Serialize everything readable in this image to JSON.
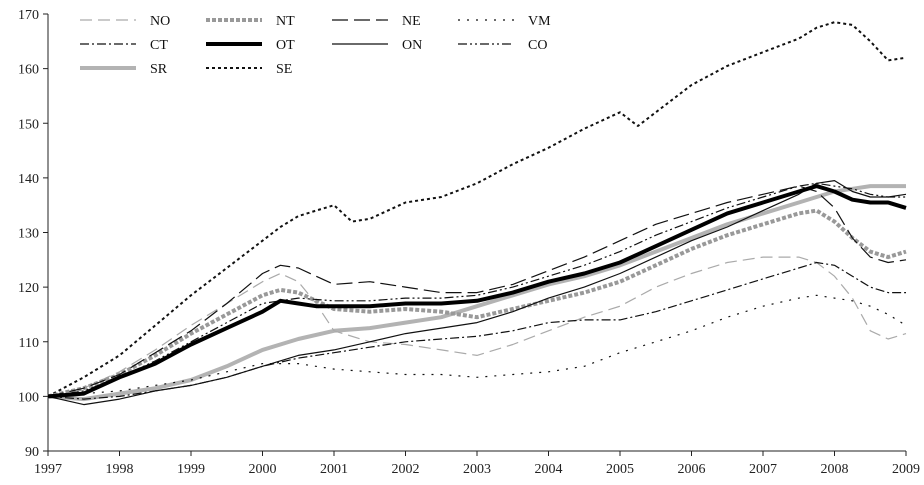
{
  "chart_data": {
    "type": "line",
    "title": "",
    "xlabel": "",
    "ylabel": "",
    "xlim": [
      1997,
      2009
    ],
    "ylim": [
      90,
      170
    ],
    "x_ticks": [
      "1997",
      "1998",
      "1999",
      "2000",
      "2001",
      "2002",
      "2003",
      "2004",
      "2005",
      "2006",
      "2007",
      "2008",
      "2009"
    ],
    "y_ticks": [
      "90",
      "100",
      "110",
      "120",
      "130",
      "140",
      "150",
      "160",
      "170"
    ],
    "grid": false,
    "legend_placement": "top-left",
    "series": [
      {
        "name": "NO",
        "color": "#aaaaaa",
        "dash": "dashed",
        "width": "thin",
        "x": [
          1997,
          1997.5,
          1998,
          1998.5,
          1999,
          1999.5,
          2000,
          2000.25,
          2000.5,
          2000.75,
          2001,
          2001.5,
          2002,
          2002.5,
          2003,
          2003.5,
          2004,
          2004.5,
          2005,
          2005.5,
          2006,
          2006.5,
          2007,
          2007.5,
          2007.75,
          2008,
          2008.25,
          2008.5,
          2008.75,
          2009
        ],
        "y": [
          100,
          101.5,
          104.5,
          108.5,
          113,
          117,
          121,
          122.5,
          121,
          117,
          112,
          110,
          109.5,
          108.5,
          107.5,
          109.5,
          112,
          114.5,
          116.5,
          120,
          122.5,
          124.5,
          125.5,
          125.5,
          124.5,
          122,
          118,
          112,
          110.5,
          111.5
        ]
      },
      {
        "name": "NT",
        "color": "#999999",
        "dash": "dotted",
        "width": "thick",
        "x": [
          1997,
          1997.5,
          1998,
          1998.5,
          1999,
          1999.5,
          2000,
          2000.25,
          2000.5,
          2000.75,
          2001,
          2001.5,
          2002,
          2002.5,
          2003,
          2003.5,
          2004,
          2004.5,
          2005,
          2005.5,
          2006,
          2006.5,
          2007,
          2007.5,
          2007.75,
          2008,
          2008.25,
          2008.5,
          2008.75,
          2009
        ],
        "y": [
          100,
          101.5,
          104,
          107.5,
          111.5,
          115,
          118.5,
          119.5,
          119,
          117.5,
          116,
          115.5,
          116,
          115.5,
          114.5,
          116,
          117.5,
          119,
          121,
          124,
          127,
          129.5,
          131.5,
          133.5,
          134,
          132,
          129,
          126.5,
          125.5,
          126.5
        ]
      },
      {
        "name": "NE",
        "color": "#111111",
        "dash": "longdash",
        "width": "thin",
        "x": [
          1997,
          1997.5,
          1998,
          1998.5,
          1999,
          1999.5,
          2000,
          2000.25,
          2000.5,
          2000.75,
          2001,
          2001.5,
          2002,
          2002.5,
          2003,
          2003.5,
          2004,
          2004.5,
          2005,
          2005.5,
          2006,
          2006.5,
          2007,
          2007.5,
          2007.75,
          2008,
          2008.25,
          2008.5,
          2008.75,
          2009
        ],
        "y": [
          100,
          101.5,
          104,
          108,
          112,
          117,
          122.5,
          124,
          123.5,
          122,
          120.5,
          121,
          120,
          119,
          119,
          120.5,
          123,
          125.5,
          128.5,
          131.5,
          133.5,
          135.5,
          137,
          138.5,
          137.5,
          134.5,
          129,
          125.5,
          124.5,
          125
        ]
      },
      {
        "name": "VM",
        "color": "#111111",
        "dash": "sparsedot",
        "width": "thin",
        "x": [
          1997,
          1997.5,
          1998,
          1998.5,
          1999,
          1999.5,
          2000,
          2000.5,
          2001,
          2001.5,
          2002,
          2002.5,
          2003,
          2003.5,
          2004,
          2004.5,
          2005,
          2005.5,
          2006,
          2006.5,
          2007,
          2007.5,
          2007.75,
          2008,
          2008.25,
          2008.5,
          2008.75,
          2009
        ],
        "y": [
          100,
          100.5,
          101,
          102,
          103,
          104.5,
          106,
          106,
          105,
          104.5,
          104,
          104,
          103.5,
          104,
          104.5,
          105.5,
          108,
          110,
          112,
          114.5,
          116.5,
          118,
          118.5,
          118,
          117.5,
          116.5,
          115,
          113
        ]
      },
      {
        "name": "CT",
        "color": "#111111",
        "dash": "dashdot",
        "width": "thin",
        "x": [
          1997,
          1997.5,
          1998,
          1998.5,
          1999,
          1999.5,
          2000,
          2000.5,
          2001,
          2001.5,
          2002,
          2002.5,
          2003,
          2003.5,
          2004,
          2004.5,
          2005,
          2005.5,
          2006,
          2006.5,
          2007,
          2007.5,
          2007.75,
          2008,
          2008.25,
          2008.5,
          2008.75,
          2009
        ],
        "y": [
          100,
          99.5,
          100,
          101,
          102,
          103.5,
          105.5,
          107,
          108,
          109,
          110,
          110.5,
          111,
          112,
          113.5,
          114,
          114,
          115.5,
          117.5,
          119.5,
          121.5,
          123.5,
          124.5,
          124,
          122,
          120,
          119,
          119
        ]
      },
      {
        "name": "OT",
        "color": "#000000",
        "dash": "solid",
        "width": "thick",
        "x": [
          1997,
          1997.5,
          1998,
          1998.5,
          1999,
          1999.5,
          2000,
          2000.25,
          2000.5,
          2000.75,
          2001,
          2001.5,
          2002,
          2002.5,
          2003,
          2003.5,
          2004,
          2004.5,
          2005,
          2005.5,
          2006,
          2006.5,
          2007,
          2007.5,
          2007.75,
          2008,
          2008.25,
          2008.5,
          2008.75,
          2009
        ],
        "y": [
          100,
          100.5,
          103.5,
          106,
          109.5,
          112.5,
          115.5,
          117.5,
          117,
          116.5,
          116.5,
          116.5,
          117,
          117,
          117.5,
          119,
          121,
          122.5,
          124.5,
          127.5,
          130.5,
          133.5,
          135.5,
          137.5,
          138.5,
          137.5,
          136,
          135.5,
          135.5,
          134.5
        ]
      },
      {
        "name": "ON",
        "color": "#111111",
        "dash": "solid",
        "width": "thin",
        "x": [
          1997,
          1997.5,
          1998,
          1998.5,
          1999,
          1999.5,
          2000,
          2000.5,
          2001,
          2001.5,
          2002,
          2002.5,
          2003,
          2003.5,
          2004,
          2004.5,
          2005,
          2005.5,
          2006,
          2006.5,
          2007,
          2007.5,
          2007.75,
          2008,
          2008.25,
          2008.5,
          2008.75,
          2009
        ],
        "y": [
          100,
          98.5,
          99.5,
          101,
          102,
          103.5,
          105.5,
          107.5,
          108.5,
          110,
          111.5,
          112.5,
          113.5,
          115.5,
          118,
          120,
          122.5,
          125.5,
          128.5,
          131,
          134,
          137,
          139,
          139.5,
          137.5,
          136.5,
          136.5,
          137
        ]
      },
      {
        "name": "CO",
        "color": "#111111",
        "dash": "dashdotdot",
        "width": "thin",
        "x": [
          1997,
          1997.5,
          1998,
          1998.5,
          1999,
          1999.5,
          2000,
          2000.5,
          2001,
          2001.5,
          2002,
          2002.5,
          2003,
          2003.5,
          2004,
          2004.5,
          2005,
          2005.5,
          2006,
          2006.5,
          2007,
          2007.5,
          2007.75,
          2008,
          2008.25,
          2008.5,
          2008.75,
          2009
        ],
        "y": [
          100,
          101,
          103.5,
          106.5,
          110,
          113.5,
          117,
          118,
          117.5,
          117.5,
          118,
          118,
          118.5,
          120,
          122,
          124,
          126.5,
          129.5,
          132,
          134.5,
          136.5,
          138.5,
          139,
          138.5,
          138,
          137,
          136.5,
          136.5
        ]
      },
      {
        "name": "SR",
        "color": "#b3b3b3",
        "dash": "solid",
        "width": "thick",
        "x": [
          1997,
          1997.5,
          1998,
          1998.5,
          1999,
          1999.5,
          2000,
          2000.5,
          2001,
          2001.5,
          2002,
          2002.5,
          2003,
          2003.5,
          2004,
          2004.5,
          2005,
          2005.5,
          2006,
          2006.5,
          2007,
          2007.5,
          2007.75,
          2008,
          2008.25,
          2008.5,
          2008.75,
          2009
        ],
        "y": [
          100,
          99.5,
          100.5,
          101.5,
          103,
          105.5,
          108.5,
          110.5,
          112,
          112.5,
          113.5,
          114.5,
          116.5,
          118.5,
          120.5,
          122,
          124,
          126.5,
          129,
          131.5,
          133.5,
          135.5,
          136.5,
          137.5,
          138,
          138.5,
          138.5,
          138.5
        ]
      },
      {
        "name": "SE",
        "color": "#111111",
        "dash": "shortdash",
        "width": "medium",
        "x": [
          1997,
          1997.5,
          1998,
          1998.5,
          1999,
          1999.5,
          2000,
          2000.25,
          2000.5,
          2000.75,
          2001,
          2001.25,
          2001.5,
          2002,
          2002.5,
          2003,
          2003.5,
          2004,
          2004.5,
          2005,
          2005.25,
          2005.5,
          2006,
          2006.5,
          2007,
          2007.5,
          2007.75,
          2008,
          2008.25,
          2008.5,
          2008.75,
          2009
        ],
        "y": [
          100,
          103.5,
          107.5,
          113,
          118.5,
          123.5,
          128.5,
          131,
          133,
          134,
          135,
          132,
          132.5,
          135.5,
          136.5,
          139,
          142.5,
          145.5,
          149,
          152,
          149.5,
          152,
          157,
          160.5,
          163,
          165.5,
          167.5,
          168.5,
          168,
          165,
          161.5,
          162
        ]
      }
    ]
  }
}
